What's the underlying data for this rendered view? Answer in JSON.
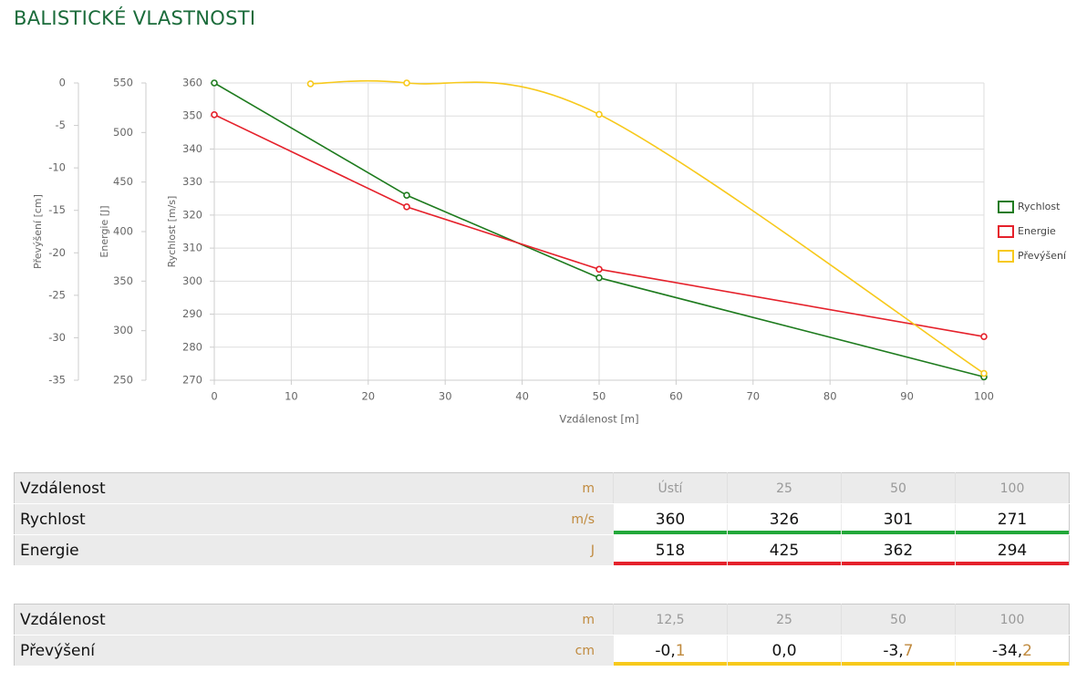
{
  "header": {
    "title": "BALISTICKÉ VLASTNOSTI"
  },
  "chart_data": {
    "type": "line",
    "xlabel": "Vzdálenost [m]",
    "xlim": [
      0,
      100
    ],
    "xticks": [
      0,
      10,
      20,
      30,
      40,
      50,
      60,
      70,
      80,
      90,
      100
    ],
    "ylabel": "Rychlost [m/s]",
    "ylim": [
      270,
      360
    ],
    "yticks": [
      270,
      280,
      290,
      300,
      310,
      320,
      330,
      340,
      350,
      360
    ],
    "y2label": "Energie [J]",
    "y2lim": [
      250,
      550
    ],
    "y2ticks": [
      250,
      300,
      350,
      400,
      450,
      500,
      550
    ],
    "y3label": "Převýšení [cm]",
    "y3lim": [
      -35,
      0
    ],
    "y3ticks": [
      -35,
      -30,
      -25,
      -20,
      -15,
      -10,
      -5,
      0
    ],
    "grid": true,
    "legend": "right",
    "series": [
      {
        "name": "Rychlost",
        "color": "#1e7b1e",
        "axis": "y",
        "x": [
          0,
          25,
          50,
          100
        ],
        "values": [
          360,
          326,
          301,
          271
        ]
      },
      {
        "name": "Energie",
        "color": "#e5212b",
        "axis": "y2",
        "x": [
          0,
          25,
          50,
          100
        ],
        "values": [
          518,
          425,
          362,
          294
        ]
      },
      {
        "name": "Převýšení",
        "color": "#f7c91c",
        "axis": "y3",
        "smooth": true,
        "x": [
          12.5,
          25,
          50,
          100
        ],
        "values": [
          -0.1,
          0.0,
          -3.7,
          -34.2
        ]
      }
    ]
  },
  "tables": [
    {
      "columns": [
        "Vzdálenost",
        "m",
        "Ústí",
        "25",
        "50",
        "100"
      ],
      "rows": [
        {
          "label": "Rychlost",
          "unit": "m/s",
          "color": "#22a83a",
          "values": [
            360,
            326,
            301,
            271
          ]
        },
        {
          "label": "Energie",
          "unit": "J",
          "color": "#e5212b",
          "values": [
            518,
            425,
            362,
            294
          ]
        }
      ]
    },
    {
      "columns": [
        "Vzdálenost",
        "m",
        "12,5",
        "25",
        "50",
        "100"
      ],
      "rows": [
        {
          "label": "Převýšení",
          "unit": "cm",
          "color": "#f7c91c",
          "values": [
            "-0,1",
            "0,0",
            "-3,7",
            "-34,2"
          ]
        }
      ]
    }
  ]
}
